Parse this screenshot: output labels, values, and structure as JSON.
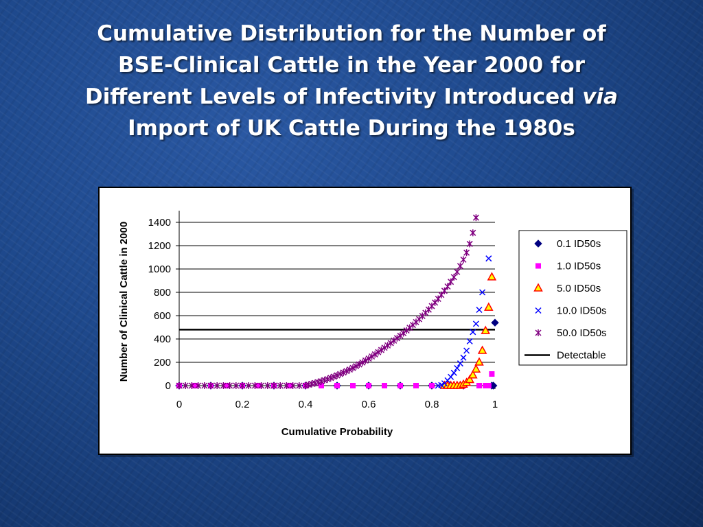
{
  "slide": {
    "title_line1": "Cumulative Distribution for the Number of",
    "title_line2": "BSE-Clinical Cattle in the Year 2000 for",
    "title_line3a": "Different Levels of Infectivity Introduced ",
    "title_line3b": "via",
    "title_line4": "Import of UK Cattle During the 1980s"
  },
  "chart_data": {
    "type": "scatter",
    "xlabel": "Cumulative Probability",
    "ylabel": "Number of Clinical Cattle in 2000",
    "xlim": [
      0,
      1
    ],
    "ylim": [
      0,
      1400
    ],
    "x_ticks": [
      "0",
      "0.2",
      "0.4",
      "0.6",
      "0.8",
      "1"
    ],
    "y_ticks": [
      "0",
      "200",
      "400",
      "600",
      "800",
      "1000",
      "1200",
      "1400"
    ],
    "grid": "horizontal",
    "legend_position": "right",
    "series": [
      {
        "name": "0.1 ID50s",
        "marker": "diamond",
        "color": "#000080",
        "points": [
          [
            0.0,
            0
          ],
          [
            0.1,
            0
          ],
          [
            0.2,
            0
          ],
          [
            0.3,
            0
          ],
          [
            0.4,
            0
          ],
          [
            0.5,
            0
          ],
          [
            0.6,
            0
          ],
          [
            0.7,
            0
          ],
          [
            0.8,
            0
          ],
          [
            0.9,
            0
          ],
          [
            0.99,
            0
          ],
          [
            0.995,
            0
          ],
          [
            1.0,
            540
          ]
        ]
      },
      {
        "name": "1.0 ID50s",
        "marker": "square",
        "color": "#ff00ff",
        "points": [
          [
            0.0,
            0
          ],
          [
            0.05,
            0
          ],
          [
            0.1,
            0
          ],
          [
            0.15,
            0
          ],
          [
            0.2,
            0
          ],
          [
            0.25,
            0
          ],
          [
            0.3,
            0
          ],
          [
            0.35,
            0
          ],
          [
            0.4,
            0
          ],
          [
            0.45,
            0
          ],
          [
            0.5,
            0
          ],
          [
            0.55,
            0
          ],
          [
            0.6,
            0
          ],
          [
            0.65,
            0
          ],
          [
            0.7,
            0
          ],
          [
            0.75,
            0
          ],
          [
            0.8,
            0
          ],
          [
            0.85,
            0
          ],
          [
            0.9,
            0
          ],
          [
            0.95,
            0
          ],
          [
            0.97,
            0
          ],
          [
            0.98,
            0
          ],
          [
            0.99,
            100
          ]
        ]
      },
      {
        "name": "5.0 ID50s",
        "marker": "triangle",
        "color": "#ff0000",
        "fill": "#ffff00",
        "points": [
          [
            0.84,
            0
          ],
          [
            0.85,
            0
          ],
          [
            0.86,
            0
          ],
          [
            0.87,
            0
          ],
          [
            0.88,
            0
          ],
          [
            0.89,
            0
          ],
          [
            0.9,
            10
          ],
          [
            0.91,
            25
          ],
          [
            0.92,
            50
          ],
          [
            0.93,
            90
          ],
          [
            0.94,
            140
          ],
          [
            0.95,
            200
          ],
          [
            0.96,
            300
          ],
          [
            0.97,
            470
          ],
          [
            0.98,
            670
          ],
          [
            0.99,
            930
          ]
        ]
      },
      {
        "name": "10.0 ID50s",
        "marker": "x",
        "color": "#0000ff",
        "points": [
          [
            0.82,
            0
          ],
          [
            0.83,
            5
          ],
          [
            0.84,
            20
          ],
          [
            0.85,
            45
          ],
          [
            0.86,
            75
          ],
          [
            0.87,
            110
          ],
          [
            0.88,
            150
          ],
          [
            0.89,
            190
          ],
          [
            0.9,
            240
          ],
          [
            0.91,
            300
          ],
          [
            0.92,
            380
          ],
          [
            0.93,
            460
          ],
          [
            0.94,
            530
          ],
          [
            0.95,
            650
          ],
          [
            0.96,
            800
          ],
          [
            0.98,
            1090
          ]
        ]
      },
      {
        "name": "50.0 ID50s",
        "marker": "star",
        "color": "#800080",
        "points": [
          [
            0.0,
            0
          ],
          [
            0.02,
            0
          ],
          [
            0.04,
            0
          ],
          [
            0.06,
            0
          ],
          [
            0.08,
            0
          ],
          [
            0.1,
            0
          ],
          [
            0.12,
            0
          ],
          [
            0.14,
            0
          ],
          [
            0.16,
            0
          ],
          [
            0.18,
            0
          ],
          [
            0.2,
            0
          ],
          [
            0.22,
            0
          ],
          [
            0.24,
            0
          ],
          [
            0.26,
            0
          ],
          [
            0.28,
            0
          ],
          [
            0.3,
            0
          ],
          [
            0.32,
            0
          ],
          [
            0.34,
            0
          ],
          [
            0.36,
            0
          ],
          [
            0.38,
            0
          ],
          [
            0.4,
            0
          ],
          [
            0.41,
            8
          ],
          [
            0.42,
            15
          ],
          [
            0.43,
            22
          ],
          [
            0.44,
            30
          ],
          [
            0.45,
            38
          ],
          [
            0.46,
            47
          ],
          [
            0.47,
            56
          ],
          [
            0.48,
            66
          ],
          [
            0.49,
            77
          ],
          [
            0.5,
            88
          ],
          [
            0.51,
            100
          ],
          [
            0.52,
            112
          ],
          [
            0.53,
            125
          ],
          [
            0.54,
            138
          ],
          [
            0.55,
            152
          ],
          [
            0.56,
            167
          ],
          [
            0.57,
            182
          ],
          [
            0.58,
            198
          ],
          [
            0.59,
            215
          ],
          [
            0.6,
            232
          ],
          [
            0.61,
            250
          ],
          [
            0.62,
            268
          ],
          [
            0.63,
            287
          ],
          [
            0.64,
            306
          ],
          [
            0.65,
            325
          ],
          [
            0.66,
            345
          ],
          [
            0.67,
            365
          ],
          [
            0.68,
            386
          ],
          [
            0.69,
            407
          ],
          [
            0.7,
            428
          ],
          [
            0.71,
            450
          ],
          [
            0.72,
            473
          ],
          [
            0.73,
            496
          ],
          [
            0.74,
            520
          ],
          [
            0.75,
            545
          ],
          [
            0.76,
            570
          ],
          [
            0.77,
            597
          ],
          [
            0.78,
            624
          ],
          [
            0.79,
            652
          ],
          [
            0.8,
            682
          ],
          [
            0.81,
            712
          ],
          [
            0.82,
            744
          ],
          [
            0.83,
            778
          ],
          [
            0.84,
            813
          ],
          [
            0.85,
            850
          ],
          [
            0.86,
            890
          ],
          [
            0.87,
            930
          ],
          [
            0.88,
            975
          ],
          [
            0.89,
            1025
          ],
          [
            0.9,
            1080
          ],
          [
            0.91,
            1140
          ],
          [
            0.92,
            1215
          ],
          [
            0.93,
            1310
          ],
          [
            0.94,
            1440
          ]
        ]
      },
      {
        "name": "Detectable",
        "marker": "line",
        "color": "#000000",
        "points": [
          [
            0,
            480
          ],
          [
            1,
            480
          ]
        ]
      }
    ]
  }
}
